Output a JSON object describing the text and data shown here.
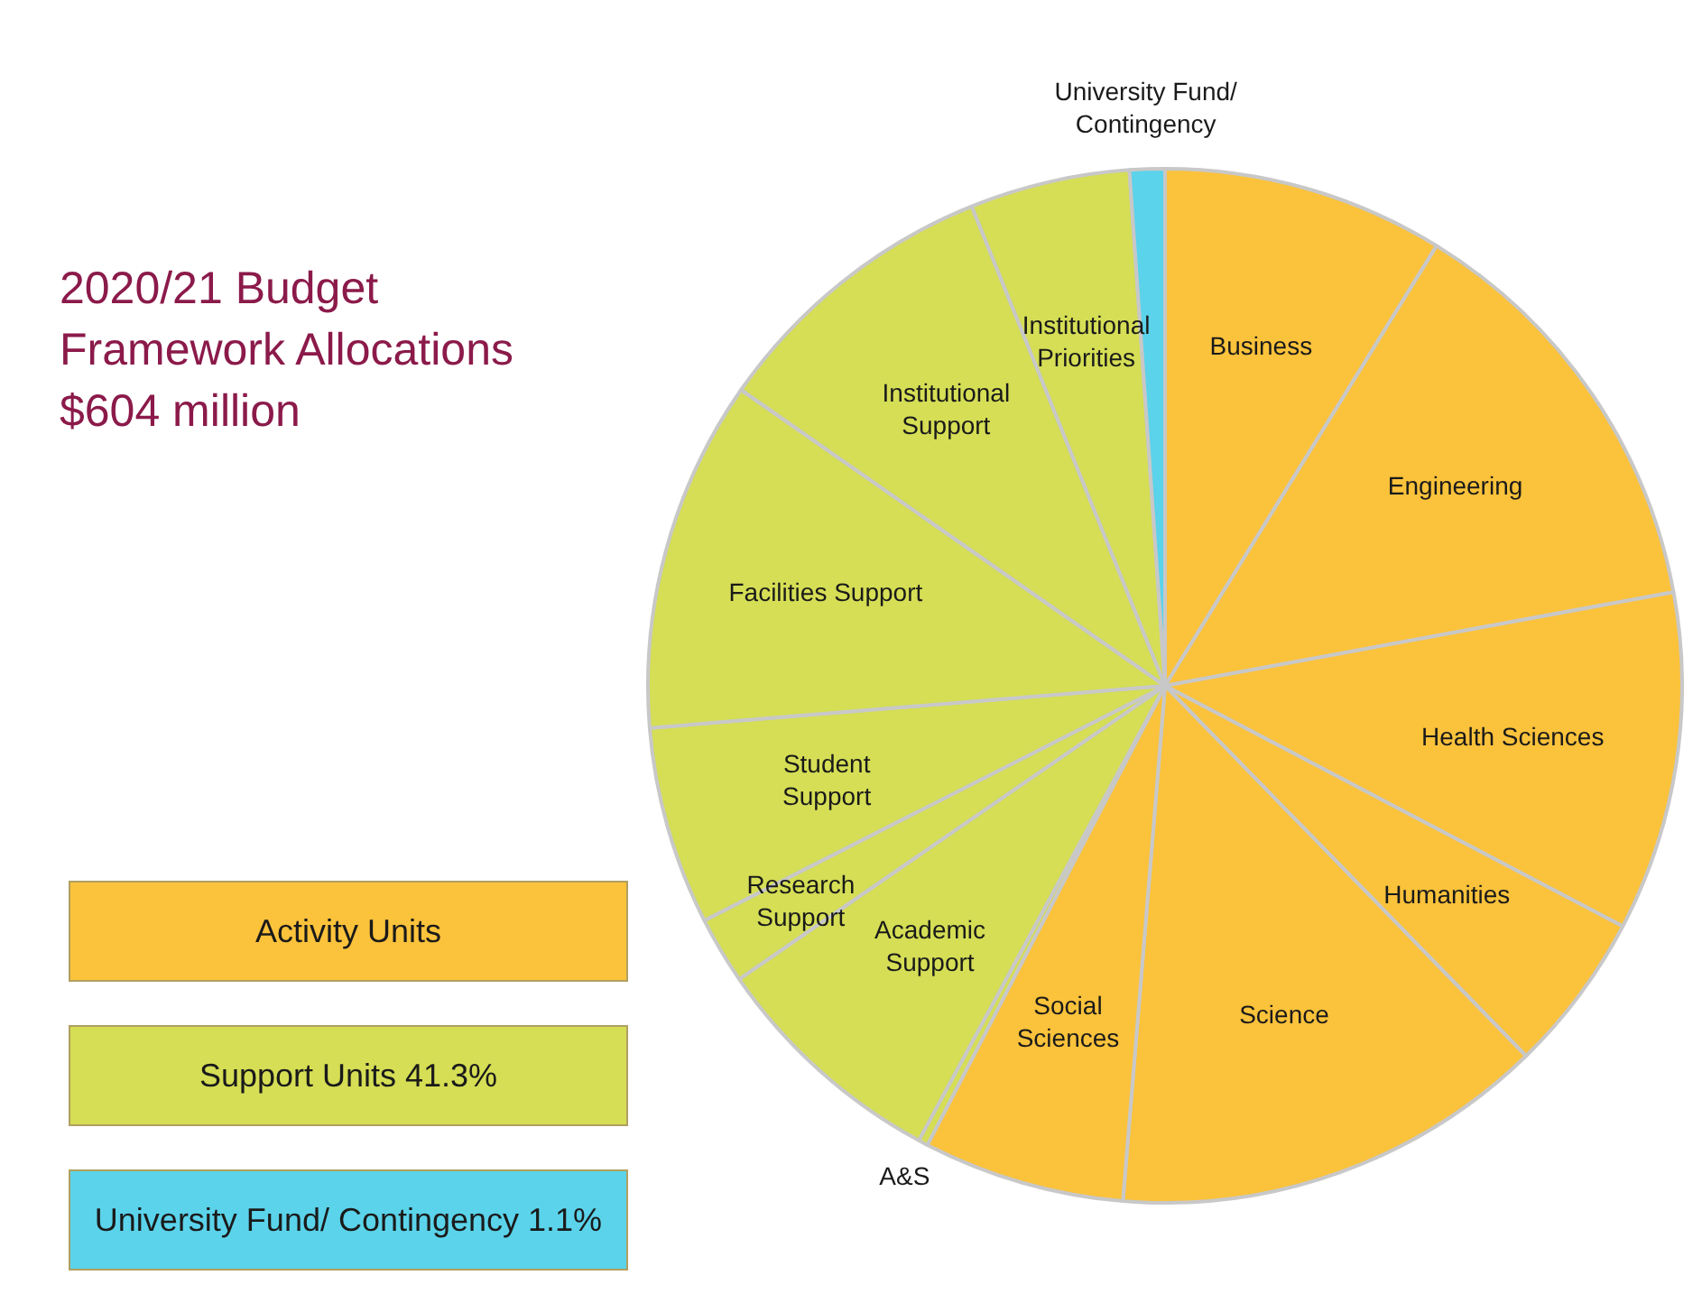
{
  "chart_data": {
    "type": "pie",
    "title": "2020/21 Budget Framework Allocations $604 million",
    "categories": [
      "Business",
      "Engineering",
      "Health Sciences",
      "Humanities",
      "Science",
      "Social Sciences",
      "A&S",
      "Academic Support",
      "Research Support",
      "Student Support",
      "Facilities Support",
      "Institutional Support",
      "Institutional Priorities",
      "University Fund/ Contingency"
    ],
    "values": [
      8.8,
      13.3,
      10.6,
      5.0,
      13.6,
      6.3,
      0.3,
      7.5,
      2.1,
      6.2,
      11.0,
      9.2,
      5.0,
      1.1
    ],
    "colors": [
      "#fbc23b",
      "#fbc23b",
      "#fbc23b",
      "#fbc23b",
      "#fbc23b",
      "#fbc23b",
      "#d5de55",
      "#d5de55",
      "#d5de55",
      "#d5de55",
      "#d5de55",
      "#d5de55",
      "#d5de55",
      "#5bd3ea"
    ],
    "annotations": [
      "Activity Units",
      "Support Units 41.3%",
      "University Fund/ Contingency 1.1%"
    ],
    "legend": false
  }
}
